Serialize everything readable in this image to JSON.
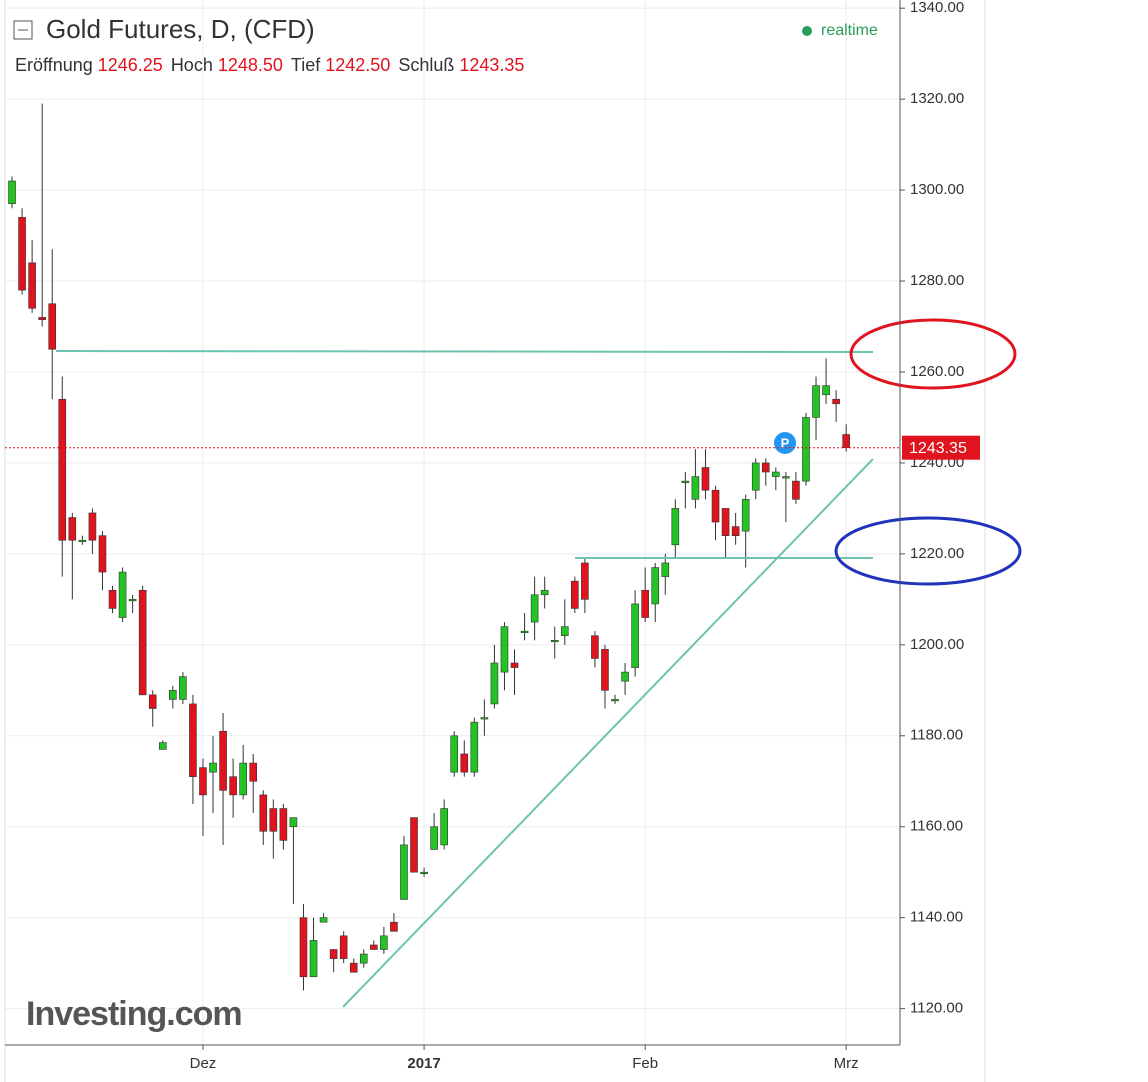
{
  "chart_data": {
    "type": "candlestick",
    "title": "Gold Futures, D, (CFD)",
    "status": "realtime",
    "ohlc_header": [
      {
        "label": "Eröffnung",
        "value": "1246.25"
      },
      {
        "label": "Hoch",
        "value": "1248.50"
      },
      {
        "label": "Tief",
        "value": "1242.50"
      },
      {
        "label": "Schluß",
        "value": "1243.35"
      }
    ],
    "watermark": "Investing.com",
    "categories": [
      null,
      null,
      null,
      null,
      null,
      null,
      null,
      null,
      null,
      null,
      null,
      null,
      null,
      null,
      null,
      null,
      null,
      null,
      null,
      "Dez",
      null,
      null,
      null,
      null,
      null,
      null,
      null,
      null,
      null,
      null,
      null,
      null,
      null,
      null,
      null,
      null,
      null,
      null,
      null,
      null,
      null,
      "2017",
      null,
      null,
      null,
      null,
      null,
      null,
      null,
      null,
      null,
      null,
      null,
      null,
      null,
      null,
      null,
      null,
      null,
      null,
      null,
      null,
      null,
      "Feb",
      null,
      null,
      null,
      null,
      null,
      null,
      null,
      null,
      null,
      null,
      null,
      null,
      null,
      null,
      null,
      null,
      null,
      null,
      null,
      "Mrz"
    ],
    "open": [
      1297,
      1294,
      1284,
      1272,
      1275,
      1254,
      1228,
      1223,
      1229,
      1224,
      1212,
      1206,
      1210,
      1212,
      1189,
      1177,
      1188,
      1188,
      1187,
      1173,
      1172,
      1181,
      1171,
      1167,
      1174,
      1167,
      1164,
      1164,
      1160,
      1140,
      1127,
      1139,
      1133,
      1136,
      1130,
      1130,
      1134,
      1133,
      1139,
      1144,
      1162,
      1150,
      1155,
      1156,
      1172,
      1176,
      1172,
      1184,
      1187,
      1194,
      1196,
      1203,
      1205,
      1211,
      1201,
      1202,
      1214,
      1218,
      1202,
      1199,
      1188,
      1192,
      1195,
      1212,
      1209,
      1215,
      1222,
      1236,
      1232,
      1239,
      1234,
      1230,
      1226,
      1225,
      1234,
      1240,
      1237,
      1237,
      1236,
      1236,
      1250,
      1255,
      1254,
      1246.25
    ],
    "high": [
      1303,
      1296,
      1289,
      1319,
      1287,
      1259,
      1229,
      1224,
      1230,
      1225,
      1213,
      1217,
      1211,
      1213,
      1190,
      1179,
      1191,
      1194,
      1189,
      1175,
      1180,
      1185,
      1175,
      1178,
      1176,
      1168,
      1166,
      1165,
      1162,
      1143,
      1140,
      1141,
      1133,
      1137,
      1131,
      1133,
      1135,
      1138,
      1141,
      1158,
      1162,
      1151,
      1163,
      1166,
      1181,
      1179,
      1184,
      1188,
      1200,
      1205,
      1199,
      1207,
      1215,
      1215,
      1204,
      1210,
      1215,
      1219,
      1203,
      1200,
      1189,
      1196,
      1212,
      1217,
      1218,
      1220,
      1232,
      1238,
      1243,
      1243,
      1235,
      1230,
      1229,
      1233,
      1241,
      1241,
      1239,
      1238,
      1238,
      1251,
      1259,
      1263,
      1256,
      1248.5
    ],
    "low": [
      1296,
      1277,
      1273,
      1270,
      1254,
      1215,
      1210,
      1222,
      1220,
      1212,
      1207,
      1205,
      1207,
      1189,
      1182,
      1177,
      1186,
      1187,
      1165,
      1158,
      1163,
      1156,
      1162,
      1166,
      1163,
      1156,
      1153,
      1155,
      1143,
      1124,
      1127,
      1139,
      1128,
      1130,
      1128,
      1129,
      1133,
      1132,
      1137,
      1144,
      1150,
      1149,
      1155,
      1155,
      1171,
      1171,
      1171,
      1180,
      1186,
      1190,
      1189,
      1201,
      1201,
      1208,
      1197,
      1200,
      1207,
      1207,
      1195,
      1186,
      1187,
      1189,
      1193,
      1205,
      1205,
      1211,
      1219,
      1230,
      1230,
      1232,
      1223,
      1219,
      1222,
      1217,
      1232,
      1235,
      1234,
      1227,
      1231,
      1235,
      1245,
      1253,
      1249,
      1242.5
    ],
    "close": [
      1302,
      1278,
      1274,
      1271.5,
      1265,
      1223,
      1223,
      1223,
      1223,
      1216,
      1208,
      1216,
      1210,
      1189,
      1186,
      1178.5,
      1190,
      1193,
      1171,
      1167,
      1174,
      1168,
      1167,
      1174,
      1170,
      1159,
      1159,
      1157,
      1162,
      1127,
      1135,
      1140,
      1131,
      1131,
      1128,
      1132,
      1133,
      1136,
      1137,
      1156,
      1150,
      1150,
      1160,
      1164,
      1180,
      1172,
      1183,
      1184,
      1196,
      1204,
      1195,
      1203,
      1211,
      1212,
      1201,
      1204,
      1208,
      1210,
      1197,
      1190,
      1188,
      1194,
      1209,
      1206,
      1217,
      1218,
      1230,
      1236,
      1237,
      1234,
      1227,
      1224,
      1224,
      1232,
      1240,
      1238,
      1238,
      1237,
      1232,
      1250,
      1257,
      1257,
      1253,
      1243.35
    ],
    "up_color": "#22c322",
    "down_color": "#e0141e",
    "last_price": 1243.35,
    "ylim": [
      1112,
      1341.8
    ],
    "yticks": [
      {
        "value": 1120,
        "label": "1120.00"
      },
      {
        "value": 1140,
        "label": "1140.00"
      },
      {
        "value": 1160,
        "label": "1160.00"
      },
      {
        "value": 1180,
        "label": "1180.00"
      },
      {
        "value": 1200,
        "label": "1200.00"
      },
      {
        "value": 1220,
        "label": "1220.00"
      },
      {
        "value": 1240,
        "label": "1240.00"
      },
      {
        "value": 1260,
        "label": "1260.00"
      },
      {
        "value": 1280,
        "label": "1280.00"
      },
      {
        "value": 1300,
        "label": "1300.00"
      },
      {
        "value": 1320,
        "label": "1320.00"
      },
      {
        "value": 1340,
        "label": "1340.00"
      }
    ],
    "grid": true
  }
}
